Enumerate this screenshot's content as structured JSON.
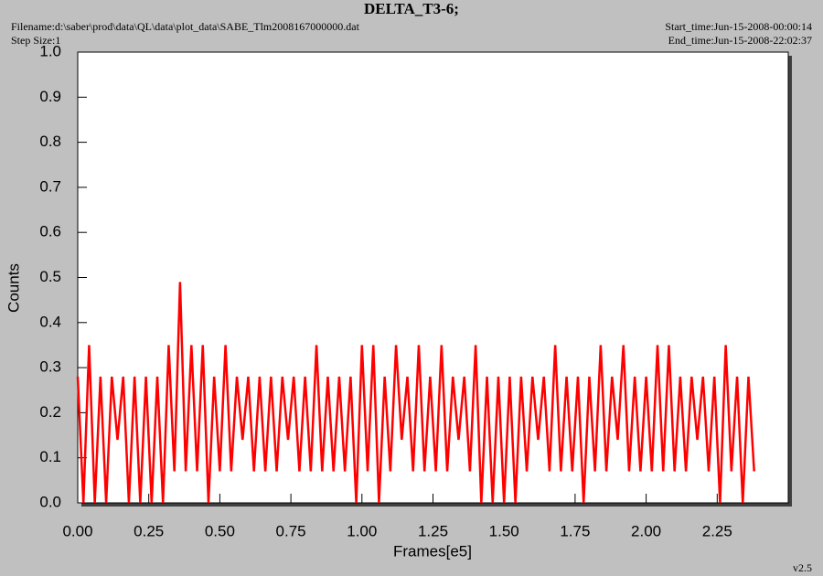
{
  "chart_data": {
    "type": "line",
    "title": "DELTA_T3-6;",
    "filename": "Filename:d:\\saber\\prod\\data\\QL\\data\\plot_data\\SABE_Tlm2008167000000.dat",
    "step_size": "Step Size:1",
    "start_time": "Start_time:Jun-15-2008-00:00:14",
    "end_time": "End_time:Jun-15-2008-22:02:37",
    "version": "v2.5",
    "x_label": "Frames[e5]",
    "y_label": "Counts",
    "xlim": [
      0,
      2.5
    ],
    "ylim": [
      0,
      1
    ],
    "xticks": [
      {
        "value": 0,
        "label": "0.00"
      },
      0.25,
      {
        "value": 0.5,
        "label": "0.50"
      },
      0.75,
      {
        "value": 1,
        "label": "1.00"
      },
      1.25,
      {
        "value": 1.5,
        "label": "1.50"
      },
      1.75,
      {
        "value": 2,
        "label": "2.00"
      },
      2.25
    ],
    "yticks": [
      {
        "value": 0,
        "label": "0.0"
      },
      0.1,
      0.2,
      0.3,
      0.4,
      0.5,
      0.6,
      0.7,
      0.8,
      0.9,
      {
        "value": 1,
        "label": "1.0"
      }
    ],
    "x": [
      0,
      0.02,
      0.04,
      0.06,
      0.08,
      0.1,
      0.12,
      0.14,
      0.16,
      0.18,
      0.2,
      0.22,
      0.24,
      0.26,
      0.28,
      0.3,
      0.32,
      0.34,
      0.36,
      0.38,
      0.4,
      0.42,
      0.44,
      0.46,
      0.48,
      0.5,
      0.52,
      0.54,
      0.56,
      0.58,
      0.6,
      0.62,
      0.64,
      0.66,
      0.68,
      0.7,
      0.72,
      0.74,
      0.76,
      0.78,
      0.8,
      0.82,
      0.84,
      0.86,
      0.88,
      0.9,
      0.92,
      0.94,
      0.96,
      0.98,
      1,
      1.02,
      1.04,
      1.06,
      1.08,
      1.1,
      1.12,
      1.14,
      1.16,
      1.18,
      1.2,
      1.22,
      1.24,
      1.26,
      1.28,
      1.3,
      1.32,
      1.34,
      1.36,
      1.38,
      1.4,
      1.42,
      1.44,
      1.46,
      1.48,
      1.5,
      1.52,
      1.54,
      1.56,
      1.58,
      1.6,
      1.62,
      1.64,
      1.66,
      1.68,
      1.7,
      1.72,
      1.74,
      1.76,
      1.78,
      1.8,
      1.82,
      1.84,
      1.86,
      1.88,
      1.9,
      1.92,
      1.94,
      1.96,
      1.98,
      2,
      2.02,
      2.04,
      2.06,
      2.08,
      2.1,
      2.12,
      2.14,
      2.16,
      2.18,
      2.2,
      2.22,
      2.24,
      2.26,
      2.28,
      2.3,
      2.32,
      2.34,
      2.36,
      2.38
    ],
    "series": [
      {
        "color": "#ff0000",
        "values": [
          0.28,
          0,
          0.35,
          0,
          0.28,
          0,
          0.28,
          0.14,
          0.28,
          0,
          0.28,
          0,
          0.28,
          0,
          0.28,
          0,
          0.35,
          0.07,
          0.49,
          0.07,
          0.35,
          0.07,
          0.35,
          0,
          0.28,
          0.07,
          0.35,
          0.07,
          0.28,
          0.14,
          0.28,
          0.07,
          0.28,
          0.07,
          0.28,
          0.07,
          0.28,
          0.14,
          0.28,
          0.07,
          0.28,
          0.07,
          0.35,
          0.07,
          0.28,
          0.07,
          0.28,
          0.07,
          0.28,
          0,
          0.35,
          0.07,
          0.35,
          0,
          0.28,
          0.07,
          0.35,
          0.14,
          0.28,
          0.07,
          0.35,
          0.07,
          0.28,
          0.07,
          0.35,
          0.07,
          0.28,
          0.14,
          0.28,
          0.07,
          0.35,
          0,
          0.28,
          0,
          0.28,
          0,
          0.28,
          0,
          0.28,
          0.07,
          0.28,
          0.14,
          0.28,
          0.07,
          0.35,
          0.07,
          0.28,
          0.07,
          0.28,
          0,
          0.28,
          0.07,
          0.35,
          0.07,
          0.28,
          0.14,
          0.35,
          0.07,
          0.28,
          0.07,
          0.28,
          0.07,
          0.35,
          0.07,
          0.35,
          0.07,
          0.28,
          0.07,
          0.28,
          0.14,
          0.28,
          0.07,
          0.28,
          0,
          0.35,
          0.07,
          0.28,
          0,
          0.28,
          0.07
        ]
      }
    ]
  }
}
